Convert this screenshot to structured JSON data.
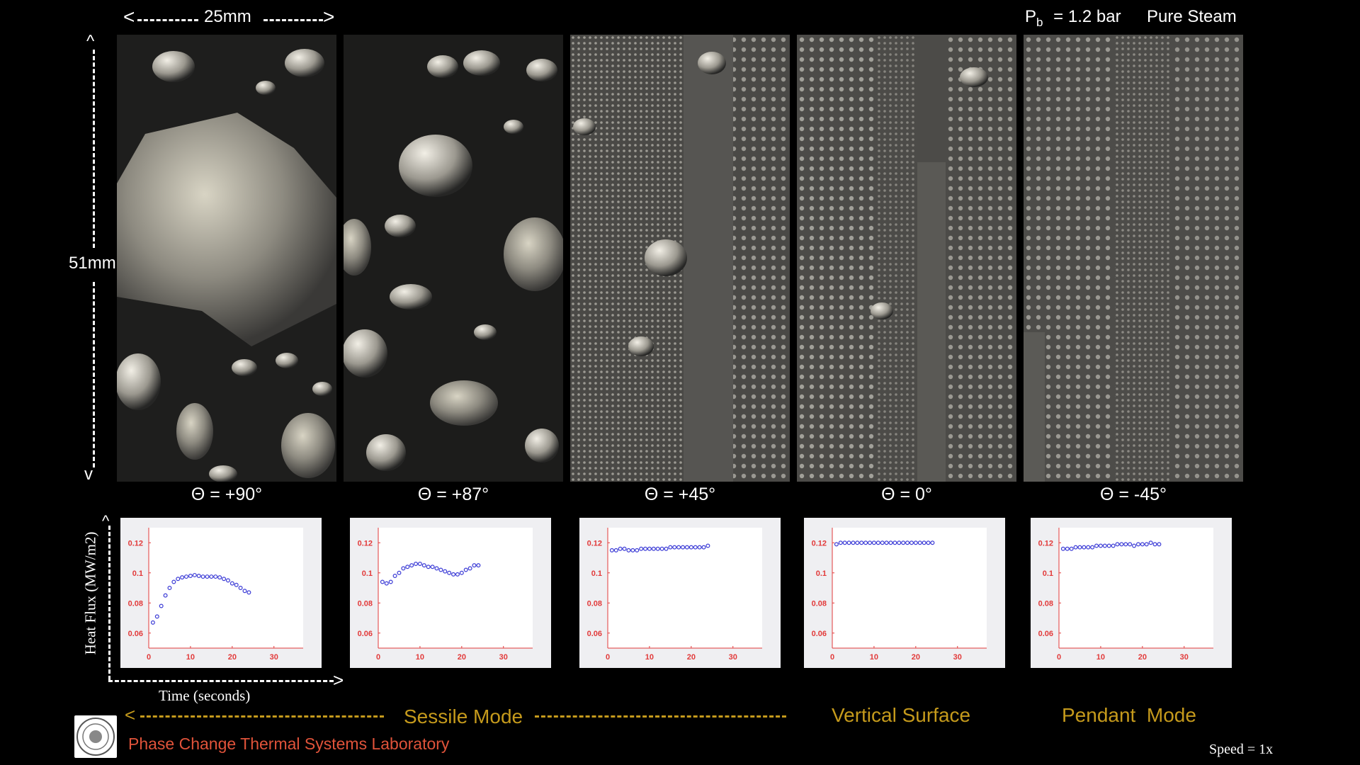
{
  "header": {
    "pressure_symbol": "P",
    "pressure_subscript": "b",
    "pressure_value": "= 1.2 bar",
    "fluid": "Pure Steam"
  },
  "dimensions": {
    "width_label": "25mm",
    "height_label": "51mm"
  },
  "panels": [
    {
      "theta": "Θ = +90°",
      "mode": "sessile"
    },
    {
      "theta": "Θ = +87°",
      "mode": "sessile"
    },
    {
      "theta": "Θ = +45°",
      "mode": "sessile"
    },
    {
      "theta": "Θ = 0°",
      "mode": "vertical"
    },
    {
      "theta": "Θ = -45°",
      "mode": "pendant"
    }
  ],
  "plot_axes": {
    "ylabel": "Heat Flux (MW/m2)",
    "xlabel": "Time (seconds)",
    "x_ticks": [
      "0",
      "10",
      "20",
      "30"
    ],
    "y_ticks": [
      "0.06",
      "0.08",
      "0.1",
      "0.12"
    ]
  },
  "chart_data": [
    {
      "type": "scatter",
      "theta": "+90°",
      "xlim": [
        0,
        37
      ],
      "ylim": [
        0.05,
        0.13
      ],
      "x": [
        1,
        2,
        3,
        4,
        5,
        6,
        7,
        8,
        9,
        10,
        11,
        12,
        13,
        14,
        15,
        16,
        17,
        18,
        19,
        20,
        21,
        22,
        23,
        24
      ],
      "y": [
        0.067,
        0.071,
        0.078,
        0.085,
        0.09,
        0.094,
        0.096,
        0.097,
        0.0975,
        0.098,
        0.0985,
        0.098,
        0.0975,
        0.0975,
        0.0975,
        0.0975,
        0.097,
        0.096,
        0.095,
        0.093,
        0.092,
        0.09,
        0.088,
        0.087
      ]
    },
    {
      "type": "scatter",
      "theta": "+87°",
      "xlim": [
        0,
        37
      ],
      "ylim": [
        0.05,
        0.13
      ],
      "x": [
        1,
        2,
        3,
        4,
        5,
        6,
        7,
        8,
        9,
        10,
        11,
        12,
        13,
        14,
        15,
        16,
        17,
        18,
        19,
        20,
        21,
        22,
        23,
        24
      ],
      "y": [
        0.094,
        0.093,
        0.094,
        0.098,
        0.1,
        0.103,
        0.104,
        0.105,
        0.106,
        0.106,
        0.105,
        0.104,
        0.104,
        0.103,
        0.102,
        0.101,
        0.1,
        0.099,
        0.099,
        0.1,
        0.102,
        0.103,
        0.105,
        0.105
      ]
    },
    {
      "type": "scatter",
      "theta": "+45°",
      "xlim": [
        0,
        37
      ],
      "ylim": [
        0.05,
        0.13
      ],
      "x": [
        1,
        2,
        3,
        4,
        5,
        6,
        7,
        8,
        9,
        10,
        11,
        12,
        13,
        14,
        15,
        16,
        17,
        18,
        19,
        20,
        21,
        22,
        23,
        24
      ],
      "y": [
        0.115,
        0.115,
        0.116,
        0.116,
        0.115,
        0.115,
        0.115,
        0.116,
        0.116,
        0.116,
        0.116,
        0.116,
        0.116,
        0.116,
        0.117,
        0.117,
        0.117,
        0.117,
        0.117,
        0.117,
        0.117,
        0.117,
        0.117,
        0.118
      ]
    },
    {
      "type": "scatter",
      "theta": "0°",
      "xlim": [
        0,
        37
      ],
      "ylim": [
        0.05,
        0.13
      ],
      "x": [
        1,
        2,
        3,
        4,
        5,
        6,
        7,
        8,
        9,
        10,
        11,
        12,
        13,
        14,
        15,
        16,
        17,
        18,
        19,
        20,
        21,
        22,
        23,
        24
      ],
      "y": [
        0.119,
        0.12,
        0.12,
        0.12,
        0.12,
        0.12,
        0.12,
        0.12,
        0.12,
        0.12,
        0.12,
        0.12,
        0.12,
        0.12,
        0.12,
        0.12,
        0.12,
        0.12,
        0.12,
        0.12,
        0.12,
        0.12,
        0.12,
        0.12
      ]
    },
    {
      "type": "scatter",
      "theta": "-45°",
      "xlim": [
        0,
        37
      ],
      "ylim": [
        0.05,
        0.13
      ],
      "x": [
        1,
        2,
        3,
        4,
        5,
        6,
        7,
        8,
        9,
        10,
        11,
        12,
        13,
        14,
        15,
        16,
        17,
        18,
        19,
        20,
        21,
        22,
        23,
        24
      ],
      "y": [
        0.116,
        0.116,
        0.116,
        0.117,
        0.117,
        0.117,
        0.117,
        0.117,
        0.118,
        0.118,
        0.118,
        0.118,
        0.118,
        0.119,
        0.119,
        0.119,
        0.119,
        0.118,
        0.119,
        0.119,
        0.119,
        0.12,
        0.119,
        0.119
      ]
    }
  ],
  "modes": {
    "sessile": "Sessile Mode",
    "vertical": "Vertical Surface",
    "pendant": "Pendant  Mode"
  },
  "footer": {
    "lab": "Phase Change Thermal Systems Laboratory",
    "speed": "Speed = 1x"
  },
  "colors": {
    "marker": "#3b3bd6",
    "axis": "#e23a3a",
    "mode_text": "#c59a1c",
    "lab_text": "#e0533a"
  }
}
